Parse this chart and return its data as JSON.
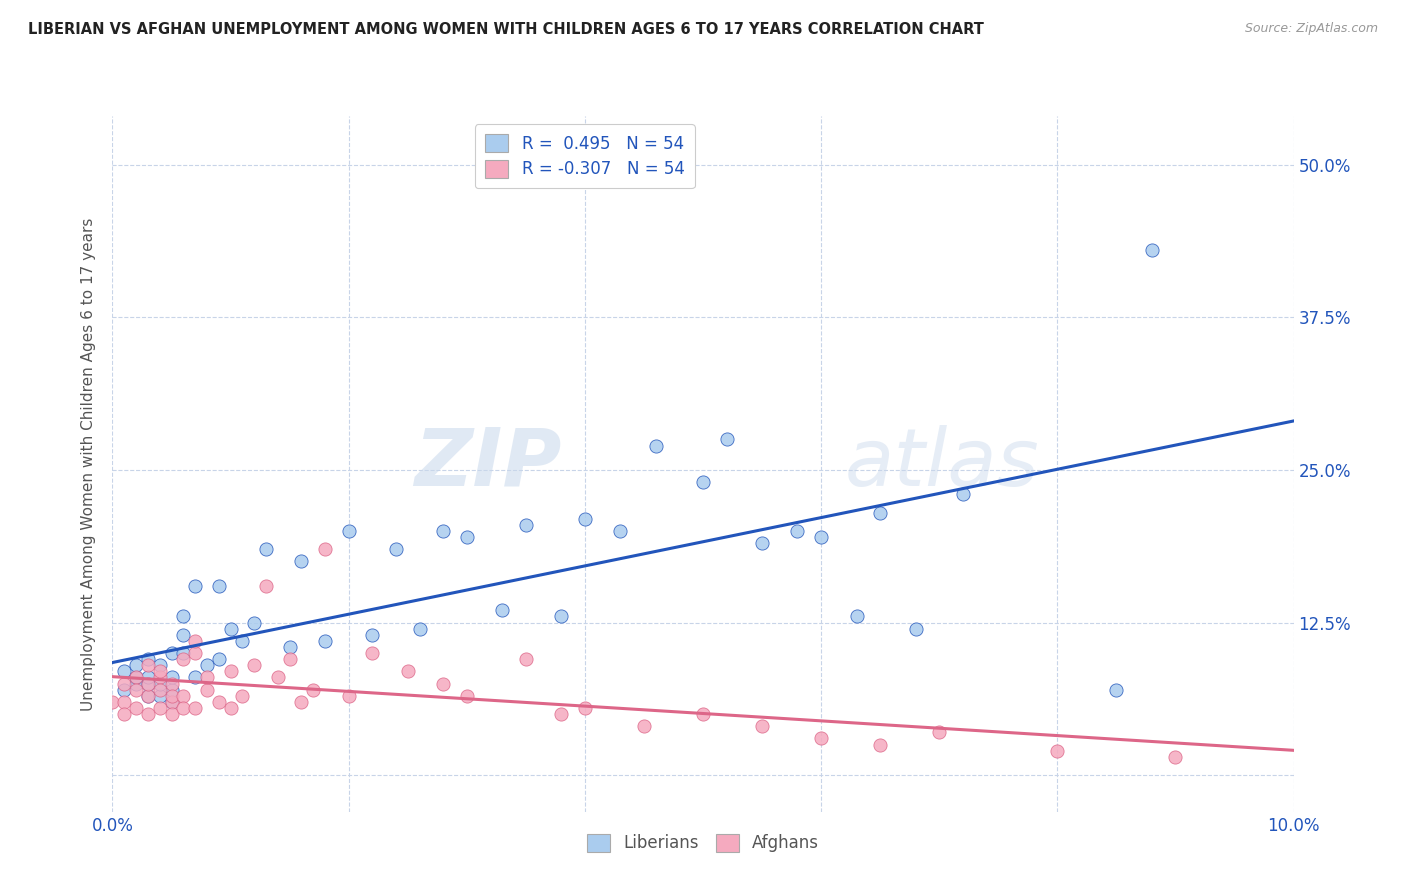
{
  "title": "LIBERIAN VS AFGHAN UNEMPLOYMENT AMONG WOMEN WITH CHILDREN AGES 6 TO 17 YEARS CORRELATION CHART",
  "source": "Source: ZipAtlas.com",
  "ylabel": "Unemployment Among Women with Children Ages 6 to 17 years",
  "xlim": [
    0.0,
    0.1
  ],
  "ylim": [
    -0.03,
    0.54
  ],
  "x_ticks": [
    0.0,
    0.02,
    0.04,
    0.06,
    0.08,
    0.1
  ],
  "y_ticks": [
    0.0,
    0.125,
    0.25,
    0.375,
    0.5
  ],
  "y_tick_labels": [
    "",
    "12.5%",
    "25.0%",
    "37.5%",
    "50.0%"
  ],
  "liberian_color": "#aaccee",
  "afghan_color": "#f5aabf",
  "liberian_line_color": "#2255bb",
  "afghan_line_color": "#dd6688",
  "R_liberian": 0.495,
  "N_liberian": 54,
  "R_afghan": -0.307,
  "N_afghan": 54,
  "background_color": "#ffffff",
  "grid_color": "#c8d4e8",
  "watermark_zip": "ZIP",
  "watermark_atlas": "atlas",
  "liberian_x": [
    0.001,
    0.001,
    0.002,
    0.002,
    0.002,
    0.003,
    0.003,
    0.003,
    0.003,
    0.004,
    0.004,
    0.004,
    0.005,
    0.005,
    0.005,
    0.005,
    0.006,
    0.006,
    0.006,
    0.007,
    0.007,
    0.008,
    0.009,
    0.009,
    0.01,
    0.011,
    0.012,
    0.013,
    0.015,
    0.016,
    0.018,
    0.02,
    0.022,
    0.024,
    0.026,
    0.028,
    0.03,
    0.033,
    0.035,
    0.038,
    0.04,
    0.043,
    0.046,
    0.05,
    0.052,
    0.055,
    0.058,
    0.06,
    0.063,
    0.065,
    0.068,
    0.072,
    0.085,
    0.088
  ],
  "liberian_y": [
    0.07,
    0.085,
    0.075,
    0.08,
    0.09,
    0.065,
    0.075,
    0.08,
    0.095,
    0.065,
    0.075,
    0.09,
    0.06,
    0.07,
    0.08,
    0.1,
    0.1,
    0.115,
    0.13,
    0.08,
    0.155,
    0.09,
    0.095,
    0.155,
    0.12,
    0.11,
    0.125,
    0.185,
    0.105,
    0.175,
    0.11,
    0.2,
    0.115,
    0.185,
    0.12,
    0.2,
    0.195,
    0.135,
    0.205,
    0.13,
    0.21,
    0.2,
    0.27,
    0.24,
    0.275,
    0.19,
    0.2,
    0.195,
    0.13,
    0.215,
    0.12,
    0.23,
    0.07,
    0.43
  ],
  "afghan_x": [
    0.0,
    0.001,
    0.001,
    0.001,
    0.002,
    0.002,
    0.002,
    0.003,
    0.003,
    0.003,
    0.003,
    0.004,
    0.004,
    0.004,
    0.004,
    0.005,
    0.005,
    0.005,
    0.005,
    0.006,
    0.006,
    0.006,
    0.007,
    0.007,
    0.007,
    0.008,
    0.008,
    0.009,
    0.01,
    0.01,
    0.011,
    0.012,
    0.013,
    0.014,
    0.015,
    0.016,
    0.017,
    0.018,
    0.02,
    0.022,
    0.025,
    0.028,
    0.03,
    0.035,
    0.038,
    0.04,
    0.045,
    0.05,
    0.055,
    0.06,
    0.065,
    0.07,
    0.08,
    0.09
  ],
  "afghan_y": [
    0.06,
    0.075,
    0.06,
    0.05,
    0.08,
    0.07,
    0.055,
    0.09,
    0.065,
    0.075,
    0.05,
    0.08,
    0.085,
    0.07,
    0.055,
    0.06,
    0.075,
    0.065,
    0.05,
    0.095,
    0.065,
    0.055,
    0.1,
    0.11,
    0.055,
    0.07,
    0.08,
    0.06,
    0.085,
    0.055,
    0.065,
    0.09,
    0.155,
    0.08,
    0.095,
    0.06,
    0.07,
    0.185,
    0.065,
    0.1,
    0.085,
    0.075,
    0.065,
    0.095,
    0.05,
    0.055,
    0.04,
    0.05,
    0.04,
    0.03,
    0.025,
    0.035,
    0.02,
    0.015
  ]
}
